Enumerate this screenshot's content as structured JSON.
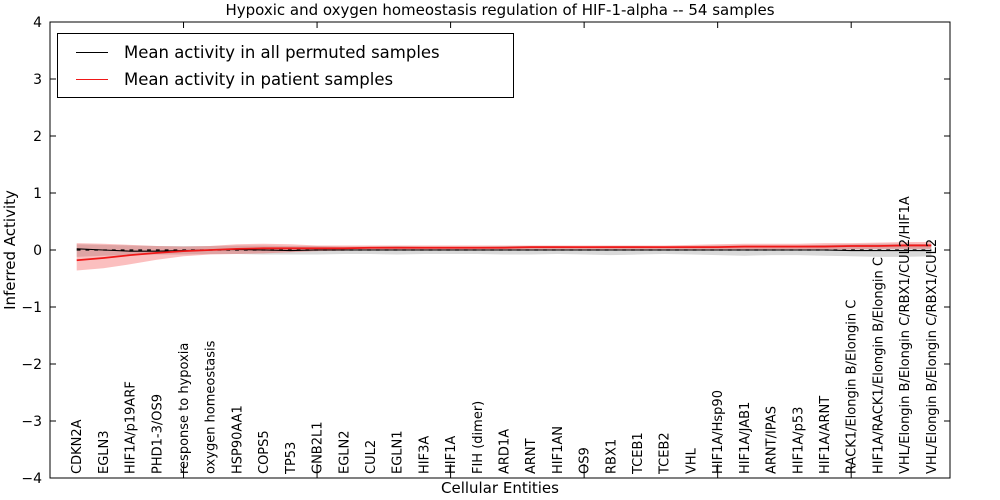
{
  "figure": {
    "title": "Hypoxic and oxygen homeostasis regulation of HIF-1-alpha -- 54 samples",
    "xlabel": "Cellular Entities",
    "ylabel": "Inferred Activity"
  },
  "legend": {
    "position": "upper left",
    "entries": [
      {
        "label": "Mean activity in all permuted samples",
        "color": "#000000"
      },
      {
        "label": "Mean activity in patient samples",
        "color": "#f01818"
      }
    ]
  },
  "colors": {
    "background": "#ffffff",
    "axis": "#000000",
    "permuted_band": "rgba(130,130,130,0.30)",
    "patient_band": "rgba(240,24,24,0.28)"
  },
  "chart_data": {
    "type": "line",
    "title": "Hypoxic and oxygen homeostasis regulation of HIF-1-alpha -- 54 samples",
    "xlabel": "Cellular Entities",
    "ylabel": "Inferred Activity",
    "ylim": [
      -4,
      4
    ],
    "yticks": [
      -4,
      -3,
      -2,
      -1,
      0,
      1,
      2,
      3,
      4
    ],
    "xticks": [
      5,
      10,
      15,
      20,
      25,
      30
    ],
    "x_range": [
      0,
      33.7
    ],
    "grid": false,
    "legend_position": "upper left",
    "zero_line": {
      "y": 0,
      "style": "dashed",
      "color": "#000000"
    },
    "categories": [
      "CDKN2A",
      "EGLN3",
      "HIF1A/p19ARF",
      "PHD1-3/OS9",
      "response to hypoxia",
      "oxygen homeostasis",
      "HSP90AA1",
      "COPS5",
      "TP53",
      "GNB2L1",
      "EGLN2",
      "CUL2",
      "EGLN1",
      "HIF3A",
      "HIF1A",
      "FIH (dimer)",
      "ARD1A",
      "ARNT",
      "HIF1AN",
      "OS9",
      "RBX1",
      "TCEB1",
      "TCEB2",
      "VHL",
      "HIF1A/Hsp90",
      "HIF1A/JAB1",
      "ARNT/IPAS",
      "HIF1A/p53",
      "HIF1A/ARNT",
      "RACK1/Elongin B/Elongin C",
      "HIF1A/RACK1/Elongin B/Elongin C",
      "VHL/Elongin B/Elongin C/RBX1/CUL2/HIF1A",
      "VHL/Elongin B/Elongin C/RBX1/CUL2"
    ],
    "series": [
      {
        "name": "Mean activity in all permuted samples",
        "color": "#000000",
        "line_width": 1.1,
        "values": [
          0.02,
          0.0,
          -0.02,
          -0.02,
          -0.01,
          0.0,
          0.01,
          0.0,
          -0.01,
          0.0,
          0.0,
          0.0,
          0.0,
          0.0,
          0.0,
          0.0,
          0.0,
          0.0,
          0.0,
          0.0,
          0.0,
          0.0,
          0.0,
          0.0,
          0.0,
          0.0,
          0.0,
          0.0,
          0.0,
          -0.01,
          -0.01,
          -0.01,
          -0.01
        ],
        "band_upper": [
          0.1,
          0.09,
          0.08,
          0.07,
          0.07,
          0.07,
          0.08,
          0.08,
          0.07,
          0.07,
          0.06,
          0.06,
          0.07,
          0.06,
          0.06,
          0.06,
          0.07,
          0.07,
          0.07,
          0.06,
          0.07,
          0.07,
          0.06,
          0.07,
          0.08,
          0.08,
          0.08,
          0.08,
          0.09,
          0.1,
          0.11,
          0.11,
          0.1
        ],
        "band_lower": [
          -0.12,
          -0.1,
          -0.09,
          -0.08,
          -0.08,
          -0.07,
          -0.07,
          -0.08,
          -0.08,
          -0.08,
          -0.07,
          -0.07,
          -0.08,
          -0.07,
          -0.07,
          -0.07,
          -0.08,
          -0.08,
          -0.07,
          -0.08,
          -0.09,
          -0.08,
          -0.07,
          -0.08,
          -0.09,
          -0.1,
          -0.09,
          -0.09,
          -0.1,
          -0.11,
          -0.12,
          -0.12,
          -0.11
        ]
      },
      {
        "name": "Mean activity in patient samples",
        "color": "#f01818",
        "line_width": 1.8,
        "values": [
          -0.18,
          -0.14,
          -0.09,
          -0.05,
          -0.02,
          0.0,
          0.02,
          0.03,
          0.03,
          0.03,
          0.03,
          0.04,
          0.04,
          0.04,
          0.04,
          0.04,
          0.04,
          0.05,
          0.05,
          0.05,
          0.05,
          0.05,
          0.05,
          0.05,
          0.05,
          0.06,
          0.06,
          0.06,
          0.06,
          0.07,
          0.07,
          0.08,
          0.08
        ],
        "band_upper": [
          0.12,
          0.11,
          0.09,
          0.07,
          0.06,
          0.07,
          0.1,
          0.11,
          0.1,
          0.08,
          0.08,
          0.08,
          0.08,
          0.08,
          0.08,
          0.08,
          0.08,
          0.08,
          0.08,
          0.08,
          0.08,
          0.08,
          0.08,
          0.09,
          0.1,
          0.11,
          0.11,
          0.11,
          0.12,
          0.12,
          0.13,
          0.14,
          0.14
        ],
        "band_lower": [
          -0.36,
          -0.32,
          -0.25,
          -0.17,
          -0.11,
          -0.08,
          -0.07,
          -0.06,
          -0.04,
          -0.02,
          -0.01,
          0.0,
          0.0,
          0.0,
          0.0,
          0.01,
          0.01,
          0.01,
          0.01,
          0.01,
          0.01,
          0.01,
          0.01,
          0.01,
          0.01,
          0.01,
          0.01,
          0.01,
          0.01,
          0.01,
          0.02,
          0.02,
          0.02
        ]
      }
    ]
  }
}
